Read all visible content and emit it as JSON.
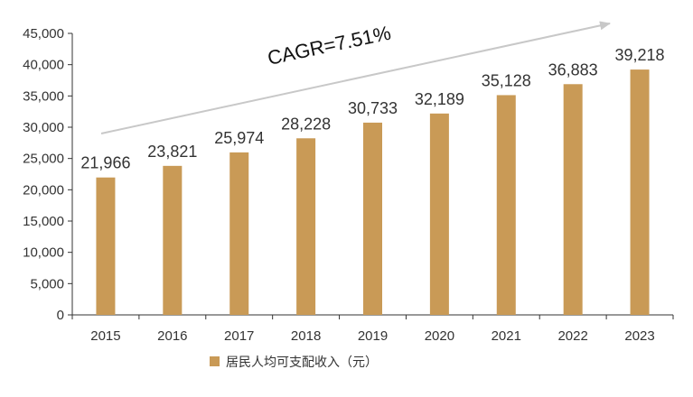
{
  "chart_data": {
    "type": "bar",
    "categories": [
      "2015",
      "2016",
      "2017",
      "2018",
      "2019",
      "2020",
      "2021",
      "2022",
      "2023"
    ],
    "series": [
      {
        "name": "居民人均可支配收入（元）",
        "values": [
          21966,
          23821,
          25974,
          28228,
          30733,
          32189,
          35128,
          36883,
          39218
        ],
        "labels": [
          "21,966",
          "23,821",
          "25,974",
          "28,228",
          "30,733",
          "32,189",
          "35,128",
          "36,883",
          "39,218"
        ],
        "color": "#C99A56"
      }
    ],
    "y_ticks": [
      "0",
      "5,000",
      "10,000",
      "15,000",
      "20,000",
      "25,000",
      "30,000",
      "35,000",
      "40,000",
      "45,000"
    ],
    "ylim": [
      0,
      45000
    ],
    "y_step": 5000,
    "annotation": "CAGR=7.51%",
    "arrow_color": "#C8C8C8",
    "axis_color": "#333333",
    "grid": false,
    "legend_position": "bottom"
  }
}
